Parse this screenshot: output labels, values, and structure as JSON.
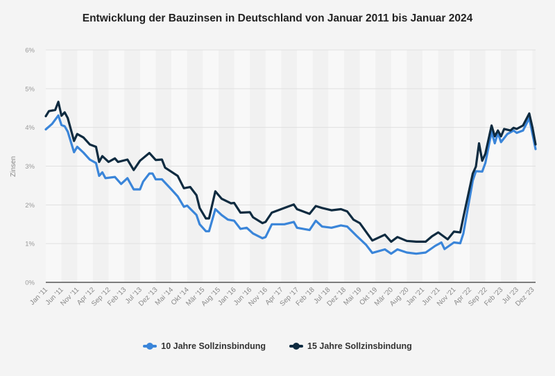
{
  "chart_data": {
    "type": "line",
    "title": "Entwicklung der Bauzinsen in Deutschland von Januar 2011 bis Januar 2024",
    "xlabel": "",
    "ylabel": "Zinsen",
    "ylim": [
      0,
      6
    ],
    "yticks": [
      "0%",
      "1%",
      "2%",
      "3%",
      "4%",
      "5%",
      "6%"
    ],
    "xrange": [
      "2011-01",
      "2024-01"
    ],
    "xticks": [
      {
        "date": "2011-01",
        "label": "Jan '11"
      },
      {
        "date": "2011-06",
        "label": "Jun '11"
      },
      {
        "date": "2011-11",
        "label": "Nov '11"
      },
      {
        "date": "2012-04",
        "label": "Apr '12"
      },
      {
        "date": "2012-09",
        "label": "Sep '12"
      },
      {
        "date": "2013-02",
        "label": "Feb '13"
      },
      {
        "date": "2013-07",
        "label": "Jul '13"
      },
      {
        "date": "2013-12",
        "label": "Dez '13"
      },
      {
        "date": "2014-05",
        "label": "Mai '14"
      },
      {
        "date": "2014-10",
        "label": "Okt '14"
      },
      {
        "date": "2015-03",
        "label": "Mär '15"
      },
      {
        "date": "2015-08",
        "label": "Aug '15"
      },
      {
        "date": "2016-01",
        "label": "Jan '16"
      },
      {
        "date": "2016-06",
        "label": "Jun '16"
      },
      {
        "date": "2016-11",
        "label": "Nov '16"
      },
      {
        "date": "2017-04",
        "label": "Apr '17"
      },
      {
        "date": "2017-09",
        "label": "Sep '17"
      },
      {
        "date": "2018-02",
        "label": "Feb '18"
      },
      {
        "date": "2018-07",
        "label": "Jul '18"
      },
      {
        "date": "2018-12",
        "label": "Dez '18"
      },
      {
        "date": "2019-05",
        "label": "Mai '19"
      },
      {
        "date": "2019-10",
        "label": "Okt '19"
      },
      {
        "date": "2020-03",
        "label": "Mär '20"
      },
      {
        "date": "2020-08",
        "label": "Aug '20"
      },
      {
        "date": "2021-01",
        "label": "Jan '21"
      },
      {
        "date": "2021-06",
        "label": "Jun '21"
      },
      {
        "date": "2021-11",
        "label": "Nov '21"
      },
      {
        "date": "2022-04",
        "label": "Apr '22"
      },
      {
        "date": "2022-09",
        "label": "Sep '22"
      },
      {
        "date": "2023-02",
        "label": "Feb '23"
      },
      {
        "date": "2023-07",
        "label": "Jul '23"
      },
      {
        "date": "2023-12",
        "label": "Dez '23"
      }
    ],
    "grid": true,
    "legend_position": "bottom",
    "series": [
      {
        "name": "10 Jahre Sollzinsbindung",
        "color": "#3a85d9",
        "points": [
          [
            "2011-01",
            3.95
          ],
          [
            "2011-03",
            4.09
          ],
          [
            "2011-05",
            4.31
          ],
          [
            "2011-06",
            4.06
          ],
          [
            "2011-07",
            4.03
          ],
          [
            "2011-08",
            3.89
          ],
          [
            "2011-10",
            3.36
          ],
          [
            "2011-11",
            3.5
          ],
          [
            "2012-01",
            3.35
          ],
          [
            "2012-03",
            3.17
          ],
          [
            "2012-05",
            3.08
          ],
          [
            "2012-06",
            2.75
          ],
          [
            "2012-07",
            2.84
          ],
          [
            "2012-08",
            2.69
          ],
          [
            "2012-11",
            2.72
          ],
          [
            "2013-01",
            2.54
          ],
          [
            "2013-03",
            2.69
          ],
          [
            "2013-05",
            2.4
          ],
          [
            "2013-07",
            2.4
          ],
          [
            "2013-08",
            2.6
          ],
          [
            "2013-10",
            2.81
          ],
          [
            "2013-11",
            2.81
          ],
          [
            "2013-12",
            2.66
          ],
          [
            "2014-02",
            2.66
          ],
          [
            "2014-05",
            2.4
          ],
          [
            "2014-07",
            2.22
          ],
          [
            "2014-09",
            1.95
          ],
          [
            "2014-10",
            1.98
          ],
          [
            "2015-01",
            1.74
          ],
          [
            "2015-02",
            1.5
          ],
          [
            "2015-04",
            1.32
          ],
          [
            "2015-05",
            1.32
          ],
          [
            "2015-07",
            1.89
          ],
          [
            "2015-09",
            1.74
          ],
          [
            "2015-11",
            1.62
          ],
          [
            "2016-01",
            1.59
          ],
          [
            "2016-03",
            1.38
          ],
          [
            "2016-05",
            1.41
          ],
          [
            "2016-07",
            1.26
          ],
          [
            "2016-10",
            1.14
          ],
          [
            "2016-11",
            1.17
          ],
          [
            "2017-01",
            1.5
          ],
          [
            "2017-03",
            1.5
          ],
          [
            "2017-05",
            1.5
          ],
          [
            "2017-08",
            1.56
          ],
          [
            "2017-09",
            1.41
          ],
          [
            "2018-01",
            1.35
          ],
          [
            "2018-03",
            1.59
          ],
          [
            "2018-05",
            1.44
          ],
          [
            "2018-08",
            1.41
          ],
          [
            "2018-11",
            1.47
          ],
          [
            "2019-01",
            1.44
          ],
          [
            "2019-04",
            1.2
          ],
          [
            "2019-07",
            0.97
          ],
          [
            "2019-09",
            0.76
          ],
          [
            "2020-01",
            0.85
          ],
          [
            "2020-03",
            0.74
          ],
          [
            "2020-05",
            0.85
          ],
          [
            "2020-08",
            0.77
          ],
          [
            "2020-11",
            0.74
          ],
          [
            "2021-02",
            0.77
          ],
          [
            "2021-05",
            0.94
          ],
          [
            "2021-07",
            1.03
          ],
          [
            "2021-08",
            0.86
          ],
          [
            "2021-11",
            1.03
          ],
          [
            "2022-01",
            1.01
          ],
          [
            "2022-02",
            1.26
          ],
          [
            "2022-05",
            2.63
          ],
          [
            "2022-06",
            2.87
          ],
          [
            "2022-08",
            2.86
          ],
          [
            "2022-09",
            3.08
          ],
          [
            "2022-11",
            3.89
          ],
          [
            "2022-12",
            3.59
          ],
          [
            "2023-01",
            3.86
          ],
          [
            "2023-02",
            3.62
          ],
          [
            "2023-04",
            3.83
          ],
          [
            "2023-06",
            3.92
          ],
          [
            "2023-07",
            3.86
          ],
          [
            "2023-09",
            3.92
          ],
          [
            "2023-11",
            4.24
          ],
          [
            "2024-01",
            3.44
          ]
        ]
      },
      {
        "name": "15 Jahre Sollzinsbindung",
        "color": "#0f2b40",
        "points": [
          [
            "2011-01",
            4.29
          ],
          [
            "2011-02",
            4.42
          ],
          [
            "2011-04",
            4.45
          ],
          [
            "2011-05",
            4.66
          ],
          [
            "2011-06",
            4.3
          ],
          [
            "2011-07",
            4.39
          ],
          [
            "2011-08",
            4.24
          ],
          [
            "2011-10",
            3.65
          ],
          [
            "2011-11",
            3.83
          ],
          [
            "2012-01",
            3.74
          ],
          [
            "2012-03",
            3.56
          ],
          [
            "2012-05",
            3.5
          ],
          [
            "2012-06",
            3.11
          ],
          [
            "2012-07",
            3.26
          ],
          [
            "2012-09",
            3.11
          ],
          [
            "2012-11",
            3.2
          ],
          [
            "2012-12",
            3.11
          ],
          [
            "2013-03",
            3.17
          ],
          [
            "2013-05",
            2.9
          ],
          [
            "2013-07",
            3.14
          ],
          [
            "2013-10",
            3.34
          ],
          [
            "2013-12",
            3.16
          ],
          [
            "2014-02",
            3.17
          ],
          [
            "2014-03",
            2.96
          ],
          [
            "2014-07",
            2.75
          ],
          [
            "2014-09",
            2.43
          ],
          [
            "2014-11",
            2.46
          ],
          [
            "2015-01",
            2.25
          ],
          [
            "2015-02",
            1.92
          ],
          [
            "2015-04",
            1.65
          ],
          [
            "2015-05",
            1.65
          ],
          [
            "2015-07",
            2.35
          ],
          [
            "2015-09",
            2.16
          ],
          [
            "2015-12",
            2.04
          ],
          [
            "2016-01",
            2.05
          ],
          [
            "2016-03",
            1.8
          ],
          [
            "2016-06",
            1.81
          ],
          [
            "2016-07",
            1.68
          ],
          [
            "2016-10",
            1.53
          ],
          [
            "2016-11",
            1.56
          ],
          [
            "2017-01",
            1.8
          ],
          [
            "2017-03",
            1.86
          ],
          [
            "2017-05",
            1.92
          ],
          [
            "2017-08",
            2.01
          ],
          [
            "2017-09",
            1.89
          ],
          [
            "2018-01",
            1.77
          ],
          [
            "2018-03",
            1.97
          ],
          [
            "2018-05",
            1.92
          ],
          [
            "2018-08",
            1.86
          ],
          [
            "2018-11",
            1.89
          ],
          [
            "2019-01",
            1.83
          ],
          [
            "2019-03",
            1.62
          ],
          [
            "2019-05",
            1.53
          ],
          [
            "2019-09",
            1.08
          ],
          [
            "2020-01",
            1.23
          ],
          [
            "2020-03",
            1.05
          ],
          [
            "2020-05",
            1.17
          ],
          [
            "2020-08",
            1.07
          ],
          [
            "2020-11",
            1.05
          ],
          [
            "2021-02",
            1.05
          ],
          [
            "2021-04",
            1.19
          ],
          [
            "2021-06",
            1.29
          ],
          [
            "2021-09",
            1.11
          ],
          [
            "2021-11",
            1.31
          ],
          [
            "2022-01",
            1.29
          ],
          [
            "2022-02",
            1.68
          ],
          [
            "2022-05",
            2.81
          ],
          [
            "2022-06",
            2.99
          ],
          [
            "2022-07",
            3.59
          ],
          [
            "2022-08",
            3.14
          ],
          [
            "2022-09",
            3.32
          ],
          [
            "2022-11",
            4.05
          ],
          [
            "2022-12",
            3.77
          ],
          [
            "2023-01",
            3.92
          ],
          [
            "2023-02",
            3.77
          ],
          [
            "2023-03",
            3.96
          ],
          [
            "2023-05",
            3.92
          ],
          [
            "2023-06",
            3.99
          ],
          [
            "2023-07",
            3.96
          ],
          [
            "2023-09",
            4.05
          ],
          [
            "2023-11",
            4.36
          ],
          [
            "2023-12",
            4.0
          ],
          [
            "2024-01",
            3.56
          ]
        ]
      }
    ]
  }
}
